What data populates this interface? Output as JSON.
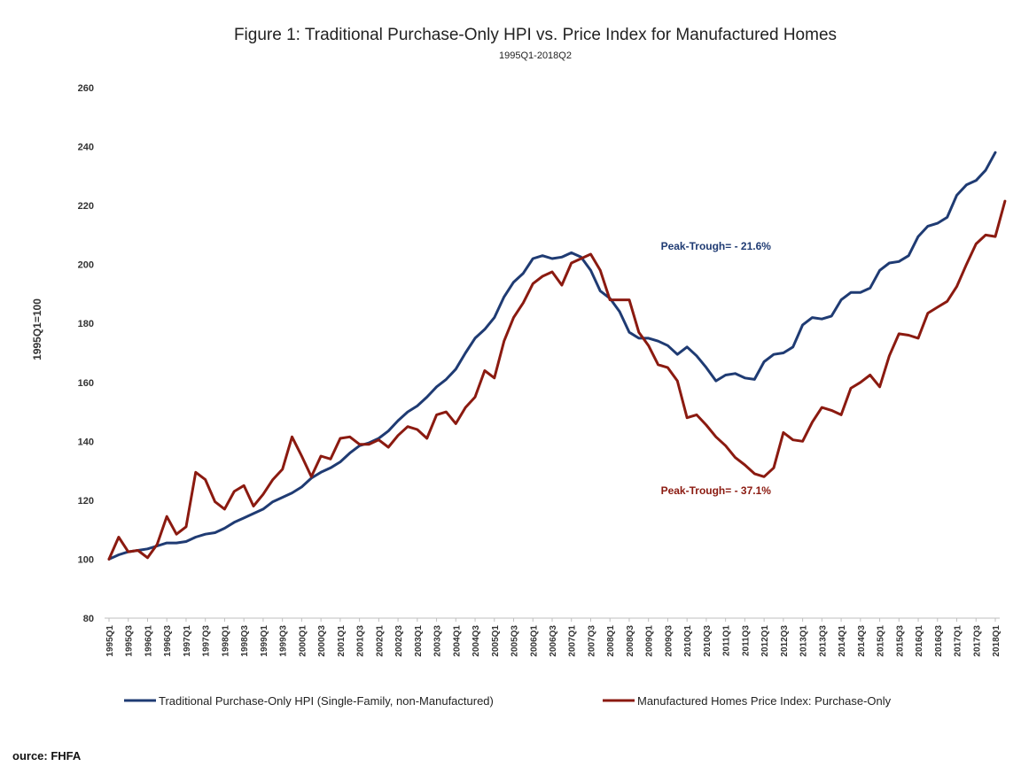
{
  "chart_data": {
    "type": "line",
    "title": "Figure 1: Traditional Purchase-Only HPI vs. Price Index for Manufactured Homes",
    "subtitle": "1995Q1-2018Q2",
    "xlabel": "",
    "ylabel": "1995Q1=100",
    "ylim": [
      80,
      260
    ],
    "yticks": [
      80,
      100,
      120,
      140,
      160,
      180,
      200,
      220,
      240,
      260
    ],
    "grid": false,
    "legend_position": "bottom",
    "xtick_labels": [
      "1995Q1",
      "1995Q3",
      "1996Q1",
      "1996Q3",
      "1997Q1",
      "1997Q3",
      "1998Q1",
      "1998Q3",
      "1999Q1",
      "1999Q3",
      "2000Q1",
      "2000Q3",
      "2001Q1",
      "2001Q3",
      "2002Q1",
      "2002Q3",
      "2003Q1",
      "2003Q3",
      "2004Q1",
      "2004Q3",
      "2005Q1",
      "2005Q3",
      "2006Q1",
      "2006Q3",
      "2007Q1",
      "2007Q3",
      "2008Q1",
      "2008Q3",
      "2009Q1",
      "2009Q3",
      "2010Q1",
      "2010Q3",
      "2011Q1",
      "2011Q3",
      "2012Q1",
      "2012Q3",
      "2013Q1",
      "2013Q3",
      "2014Q1",
      "2014Q3",
      "2015Q1",
      "2015Q3",
      "2016Q1",
      "2016Q3",
      "2017Q1",
      "2017Q3",
      "2018Q1"
    ],
    "series": [
      {
        "name": "Traditional Purchase-Only HPI (Single-Family, non-Manufactured)",
        "color": "#1f3b73",
        "values": [
          100,
          101.5,
          102.5,
          103,
          103.5,
          104.5,
          105.5,
          105.5,
          106,
          107.5,
          108.5,
          109,
          110.5,
          112.5,
          114,
          115.5,
          117,
          119.5,
          121,
          122.5,
          124.5,
          127.5,
          129.5,
          131,
          133,
          136,
          138.5,
          139.5,
          141,
          143.5,
          147,
          150,
          152,
          155,
          158.5,
          161,
          164.5,
          170,
          175,
          178,
          182,
          189,
          194,
          197,
          202,
          203,
          202,
          202.5,
          204,
          202.5,
          198,
          191,
          188.5,
          184,
          177,
          175,
          175,
          174,
          172.5,
          169.5,
          172,
          169,
          165,
          160.5,
          162.5,
          163,
          161.5,
          161,
          167,
          169.5,
          170,
          172,
          179.5,
          182,
          181.5,
          182.5,
          188,
          190.5,
          190.5,
          192,
          198,
          200.5,
          201,
          203,
          209.5,
          213,
          214,
          216,
          223.5,
          227,
          228.5,
          232,
          238
        ]
      },
      {
        "name": "Manufactured Homes Price Index: Purchase-Only",
        "color": "#8b1a10",
        "values": [
          100,
          107.5,
          102.5,
          103,
          100.5,
          105,
          114.5,
          108.5,
          111,
          129.5,
          127,
          119.5,
          117,
          123,
          125,
          118,
          122,
          127,
          130.5,
          141.5,
          135,
          128,
          135,
          134,
          141,
          141.5,
          139,
          139,
          140.5,
          138,
          142,
          145,
          144,
          141,
          149,
          150,
          146,
          151.5,
          155,
          164,
          161.5,
          174,
          182,
          187,
          193.5,
          196,
          197.5,
          193,
          200.5,
          202,
          203.5,
          198,
          188,
          188,
          188,
          177,
          172.5,
          166,
          165,
          160.5,
          148,
          149,
          145.5,
          141.5,
          138.5,
          134.5,
          132,
          129,
          128,
          131,
          143,
          140.5,
          140,
          146.5,
          151.5,
          150.5,
          149,
          158,
          160,
          162.5,
          158.5,
          169,
          176.5,
          176,
          175,
          183.5,
          185.5,
          187.5,
          192.5,
          200,
          207,
          210,
          209.5,
          221.5
        ]
      }
    ],
    "annotations": [
      {
        "text": "Peak-Trough= - 21.6%",
        "series_color": "#1f3b73",
        "x_period": "2010Q4",
        "y_value": 205
      },
      {
        "text": "Peak-Trough= - 37.1%",
        "series_color": "#8b1a10",
        "x_period": "2010Q4",
        "y_value": 122
      }
    ]
  },
  "source_note": "ource: FHFA"
}
